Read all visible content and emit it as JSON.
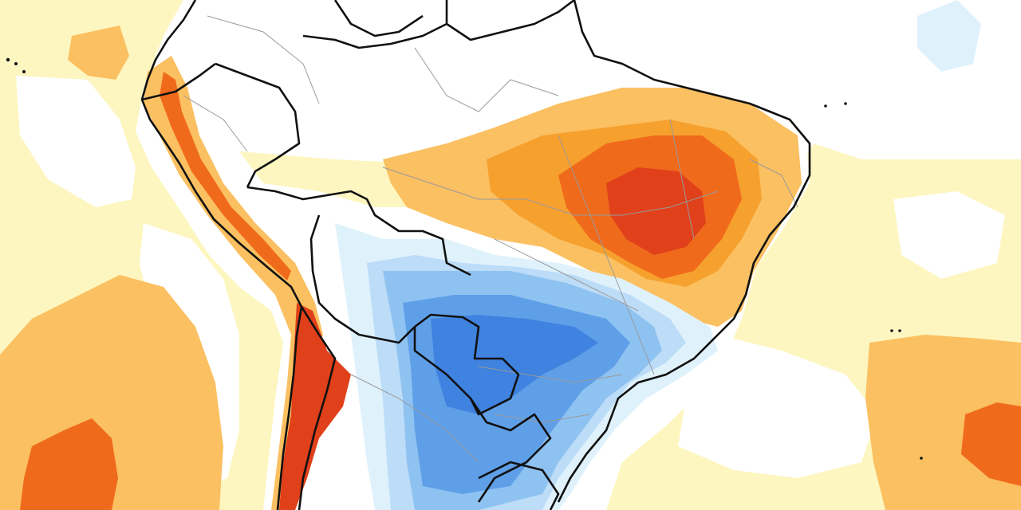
{
  "map": {
    "kind": "temperature anomaly map",
    "region": "South America",
    "colors": {
      "background": "#ffffff",
      "pale_yellow": "#fdf6c0",
      "light_orange": "#fbc061",
      "orange": "#f6a02e",
      "deep_orange": "#f06a1c",
      "red": "#e0401a",
      "pale_blue": "#dff2fc",
      "light_blue": "#bcdcf7",
      "mid_blue": "#8ec2f1",
      "blue": "#5f9fe8",
      "deep_blue": "#3f82df",
      "country_border": "#111111",
      "state_border": "#9a9a9a"
    }
  }
}
